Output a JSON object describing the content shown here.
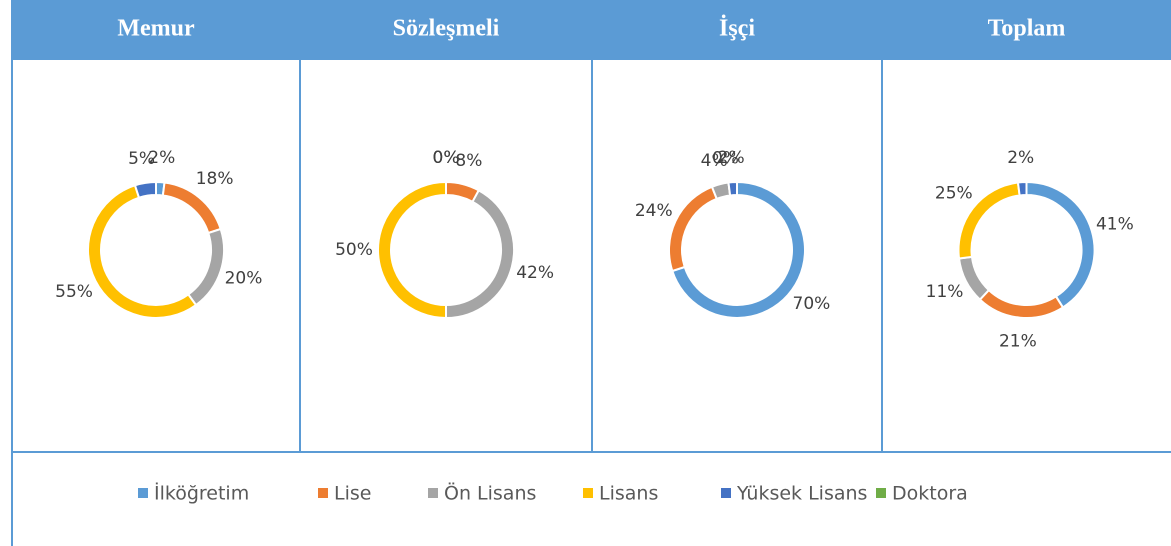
{
  "legend": {
    "categories": [
      "İlköğretim",
      "Lise",
      "Ön Lisans",
      "Lisans",
      "Yüksek Lisans",
      "Doktora"
    ],
    "colors": [
      "#5b9bd5",
      "#ed7d31",
      "#a5a5a5",
      "#ffc000",
      "#4472c4",
      "#70ad47"
    ]
  },
  "chart_data": [
    {
      "type": "pie",
      "donut": true,
      "title": "Memur",
      "values": [
        2,
        18,
        20,
        55,
        5,
        0
      ],
      "value_labels": [
        "2%",
        "18%",
        "20%",
        "55%",
        "5%",
        null
      ]
    },
    {
      "type": "pie",
      "donut": true,
      "title": "Sözleşmeli",
      "values": [
        0,
        8,
        42,
        50,
        0,
        0
      ],
      "value_labels": [
        "0%",
        "8%",
        "42%",
        "50%",
        "0%",
        null
      ]
    },
    {
      "type": "pie",
      "donut": true,
      "title": "İşçi",
      "values": [
        70,
        24,
        4,
        0,
        2,
        0
      ],
      "value_labels": [
        "70%",
        "24%",
        "4%",
        "0%",
        "2%",
        null
      ]
    },
    {
      "type": "pie",
      "donut": true,
      "title": "Toplam",
      "values": [
        41,
        21,
        11,
        25,
        2,
        0
      ],
      "value_labels": [
        "41%",
        "21%",
        "11%",
        "25%",
        "2%",
        null
      ]
    }
  ]
}
